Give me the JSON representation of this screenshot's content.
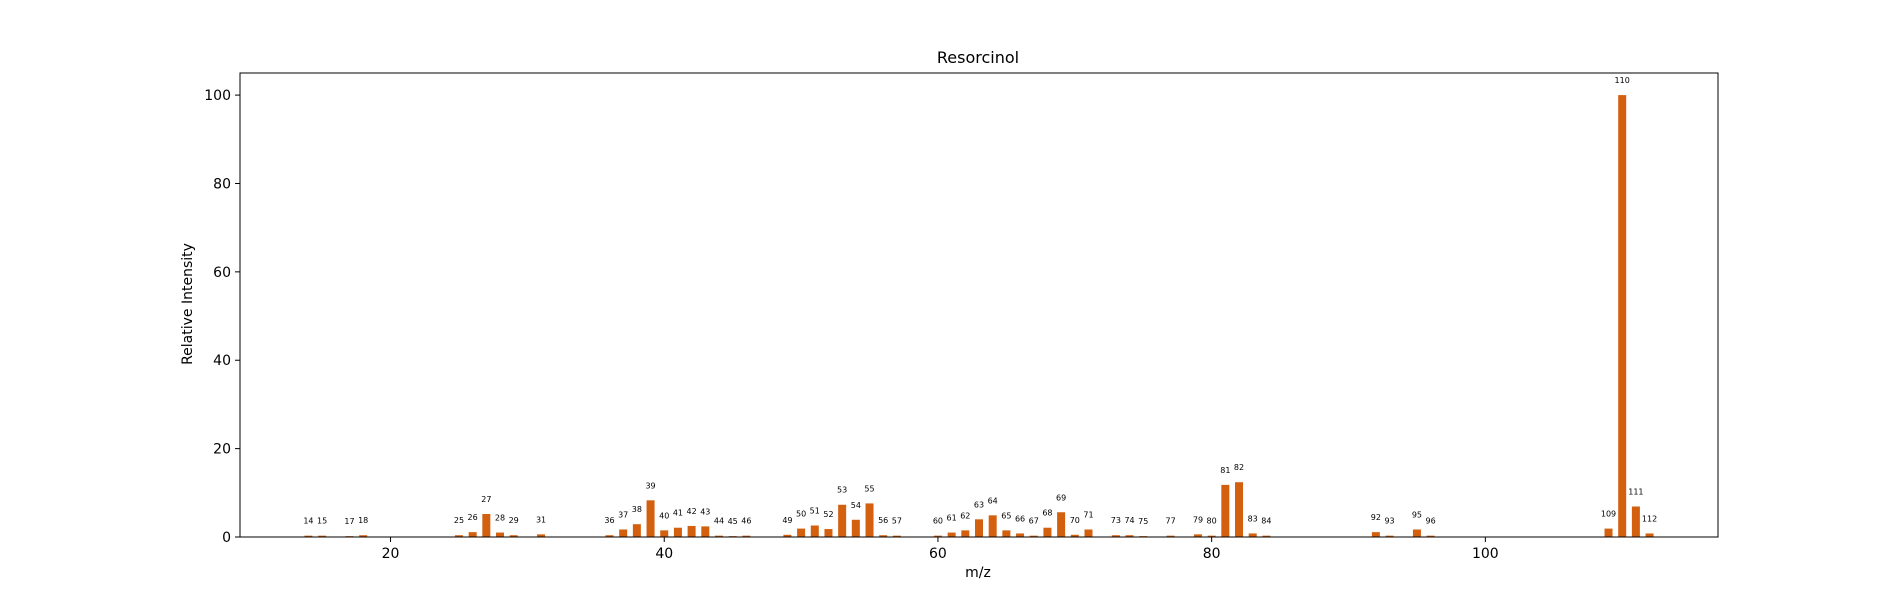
{
  "chart_data": {
    "type": "bar",
    "title": "Resorcinol",
    "xlabel": "m/z",
    "ylabel": "Relative Intensity",
    "xlim": [
      9,
      117
    ],
    "ylim": [
      0,
      105
    ],
    "xticks": [
      20,
      40,
      60,
      80,
      100
    ],
    "yticks": [
      0,
      20,
      40,
      60,
      80,
      100
    ],
    "bar_color": "#d2600f",
    "grid": false,
    "x": [
      14,
      15,
      17,
      18,
      25,
      26,
      27,
      28,
      29,
      31,
      36,
      37,
      38,
      39,
      40,
      41,
      42,
      43,
      44,
      45,
      46,
      49,
      50,
      51,
      52,
      53,
      54,
      55,
      56,
      57,
      60,
      61,
      62,
      63,
      64,
      65,
      66,
      67,
      68,
      69,
      70,
      71,
      73,
      74,
      75,
      77,
      79,
      80,
      81,
      82,
      83,
      84,
      92,
      93,
      95,
      96,
      109,
      110,
      111,
      112
    ],
    "values": [
      0.3,
      0.3,
      0.2,
      0.4,
      0.4,
      1.1,
      5.2,
      1.0,
      0.4,
      0.6,
      0.4,
      1.7,
      2.9,
      8.3,
      1.5,
      2.1,
      2.5,
      2.4,
      0.3,
      0.2,
      0.3,
      0.5,
      1.9,
      2.6,
      1.8,
      7.3,
      3.9,
      7.6,
      0.4,
      0.3,
      0.3,
      1.0,
      1.5,
      4.0,
      4.9,
      1.5,
      0.8,
      0.3,
      2.1,
      5.6,
      0.5,
      1.7,
      0.4,
      0.4,
      0.2,
      0.3,
      0.6,
      0.3,
      11.8,
      12.4,
      0.8,
      0.3,
      1.1,
      0.3,
      1.7,
      0.3,
      1.9,
      100,
      6.9,
      0.8
    ]
  }
}
